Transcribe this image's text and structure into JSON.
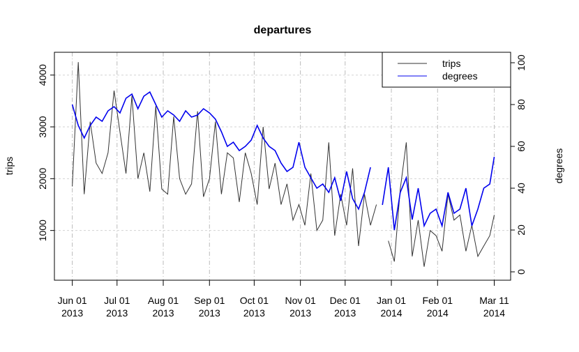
{
  "chart_data": {
    "type": "line",
    "title": "departures",
    "y_label": "trips",
    "y2_label": "degrees",
    "x": [
      "2013-06-01",
      "2013-06-05",
      "2013-06-09",
      "2013-06-13",
      "2013-06-17",
      "2013-06-21",
      "2013-06-25",
      "2013-06-29",
      "2013-07-03",
      "2013-07-07",
      "2013-07-11",
      "2013-07-15",
      "2013-07-19",
      "2013-07-23",
      "2013-07-27",
      "2013-07-31",
      "2013-08-04",
      "2013-08-08",
      "2013-08-12",
      "2013-08-16",
      "2013-08-20",
      "2013-08-24",
      "2013-08-28",
      "2013-09-01",
      "2013-09-05",
      "2013-09-09",
      "2013-09-13",
      "2013-09-17",
      "2013-09-21",
      "2013-09-25",
      "2013-09-29",
      "2013-10-03",
      "2013-10-07",
      "2013-10-11",
      "2013-10-15",
      "2013-10-19",
      "2013-10-23",
      "2013-10-27",
      "2013-10-31",
      "2013-11-04",
      "2013-11-08",
      "2013-11-12",
      "2013-11-16",
      "2013-11-20",
      "2013-11-24",
      "2013-11-28",
      "2013-12-02",
      "2013-12-06",
      "2013-12-10",
      "2013-12-14",
      "2013-12-18",
      "2013-12-22",
      "2013-12-26",
      "2013-12-30",
      "2014-01-03",
      "2014-01-07",
      "2014-01-11",
      "2014-01-15",
      "2014-01-19",
      "2014-01-23",
      "2014-01-27",
      "2014-01-31",
      "2014-02-04",
      "2014-02-08",
      "2014-02-12",
      "2014-02-16",
      "2014-02-20",
      "2014-02-24",
      "2014-02-28",
      "2014-03-04",
      "2014-03-08",
      "2014-03-11"
    ],
    "series": [
      {
        "name": "trips",
        "color": "#333333",
        "values": [
          1850,
          4250,
          1700,
          3100,
          2300,
          2100,
          2500,
          3700,
          2900,
          2100,
          3600,
          2000,
          2500,
          1750,
          3400,
          1800,
          1700,
          3200,
          2000,
          1700,
          1900,
          3300,
          1650,
          2000,
          3100,
          1700,
          2500,
          2400,
          1550,
          2500,
          2100,
          1500,
          3000,
          1800,
          2300,
          1500,
          1900,
          1200,
          1500,
          1100,
          2100,
          1000,
          1200,
          2700,
          900,
          1700,
          1100,
          2200,
          700,
          1700,
          1100,
          1500,
          null,
          800,
          400,
          1800,
          2700,
          500,
          1200,
          300,
          1000,
          900,
          600,
          1700,
          1200,
          1300,
          600,
          1100,
          500,
          700,
          900,
          1300
        ]
      },
      {
        "name": "degrees",
        "color": "#0000ee",
        "axis": "y2",
        "values": [
          80,
          70,
          64,
          70,
          74,
          72,
          77,
          79,
          76,
          83,
          85,
          78,
          84,
          86,
          80,
          74,
          77,
          75,
          72,
          77,
          74,
          75,
          78,
          76,
          73,
          67,
          60,
          62,
          58,
          60,
          63,
          70,
          64,
          60,
          58,
          52,
          48,
          50,
          62,
          50,
          45,
          40,
          42,
          38,
          45,
          34,
          48,
          35,
          30,
          38,
          50,
          null,
          32,
          50,
          20,
          38,
          45,
          25,
          40,
          22,
          28,
          30,
          22,
          38,
          28,
          30,
          40,
          22,
          30,
          40,
          42,
          55
        ]
      }
    ],
    "xlim": [
      "2013-05-20",
      "2014-03-22"
    ],
    "xticks": [
      {
        "value": "2013-06-01",
        "label": "Jun 01\n2013"
      },
      {
        "value": "2013-07-01",
        "label": "Jul 01\n2013"
      },
      {
        "value": "2013-08-01",
        "label": "Aug 01\n2013"
      },
      {
        "value": "2013-09-01",
        "label": "Sep 01\n2013"
      },
      {
        "value": "2013-10-01",
        "label": "Oct 01\n2013"
      },
      {
        "value": "2013-11-01",
        "label": "Nov 01\n2013"
      },
      {
        "value": "2013-12-01",
        "label": "Dec 01\n2013"
      },
      {
        "value": "2014-01-01",
        "label": "Jan 01\n2014"
      },
      {
        "value": "2014-02-01",
        "label": "Feb 01\n2014"
      },
      {
        "value": "2014-03-11",
        "label": "Mar 11\n2014"
      }
    ],
    "ylim": [
      40,
      4440
    ],
    "yticks": [
      1000,
      2000,
      3000,
      4000
    ],
    "y2lim": [
      -4,
      105
    ],
    "y2ticks": [
      0,
      20,
      40,
      60,
      80,
      100
    ],
    "grid": true,
    "legend": "top-right"
  }
}
